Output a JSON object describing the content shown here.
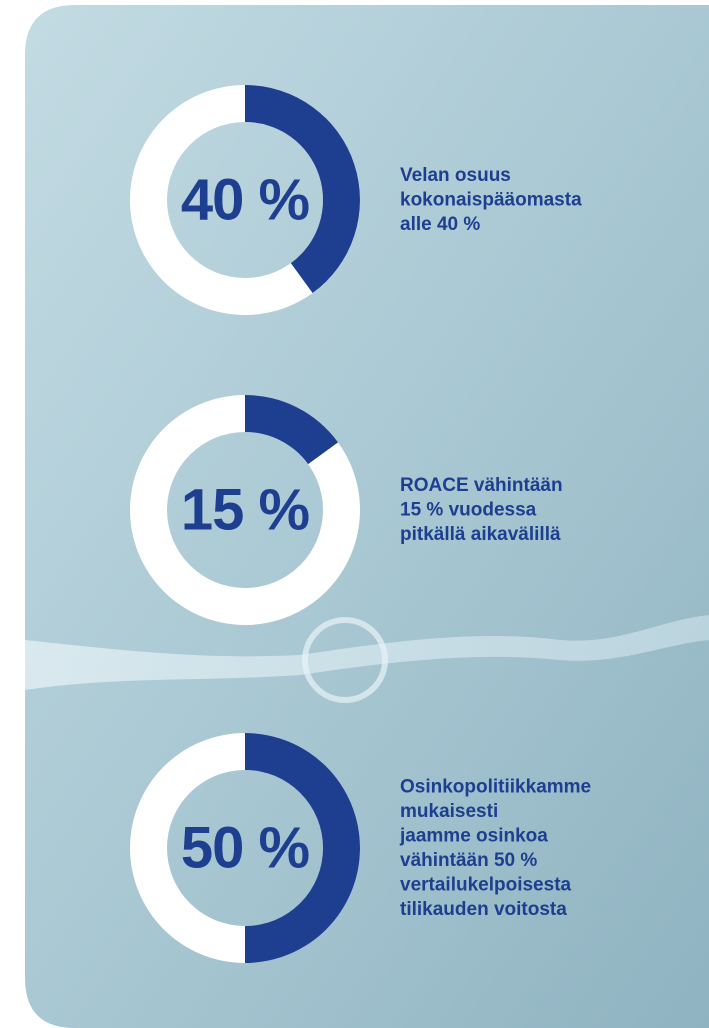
{
  "chart_data": [
    {
      "type": "donut",
      "values": [
        40
      ],
      "value_labels": [
        "40 %"
      ],
      "color": "#1e3f8f",
      "description": [
        "Velan osuus",
        "kokonaispääomasta",
        "alle 40 %"
      ]
    },
    {
      "type": "donut",
      "values": [
        15
      ],
      "value_labels": [
        "15 %"
      ],
      "color": "#1e3f8f",
      "description": [
        "ROACE vähintään",
        "15 % vuodessa",
        "pitkällä aikavälillä"
      ]
    },
    {
      "type": "donut",
      "values": [
        50
      ],
      "value_labels": [
        "50 %"
      ],
      "color": "#1e3f8f",
      "description": [
        "Osinkopolitiikkamme",
        "mukaisesti",
        "jaamme osinkoa",
        "vähintään 50 %",
        "vertailukelpoisesta",
        "tilikauden voitosta"
      ]
    }
  ]
}
